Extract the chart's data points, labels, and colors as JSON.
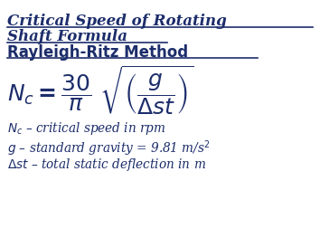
{
  "title_line1": "Critical Speed of Rotating",
  "title_line2": "Shaft Formula",
  "subtitle": "Rayleigh-Ritz Method",
  "title_color": "#1c2d6b",
  "formula_color": "#1c2d6b",
  "desc_color": "#1c2d6b",
  "bg_color": "#ffffff"
}
